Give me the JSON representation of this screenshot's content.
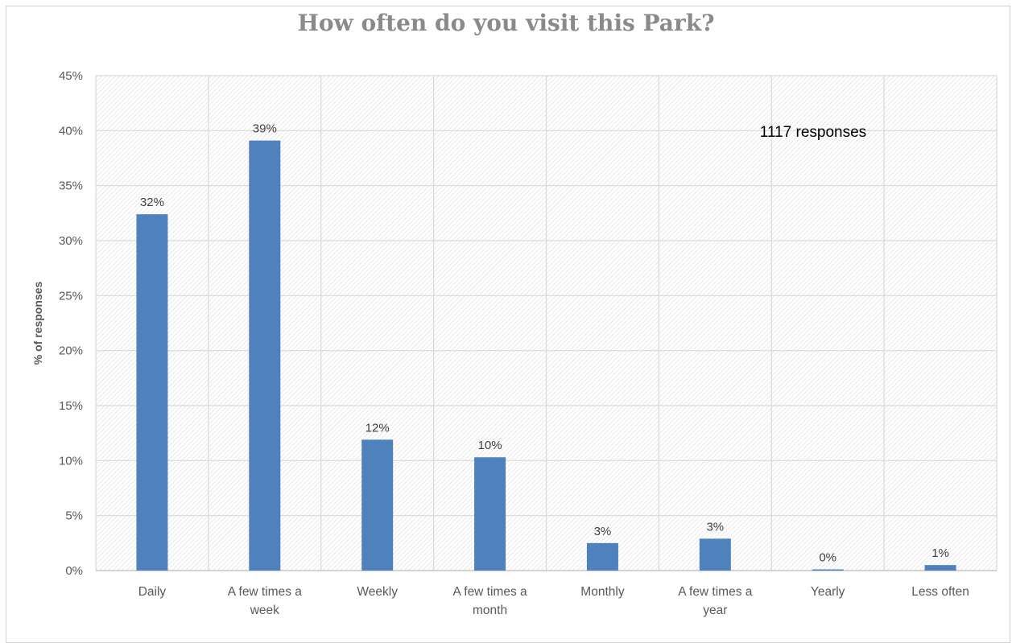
{
  "chart_data": {
    "type": "bar",
    "title": "How often do you visit this Park?",
    "ylabel": "% of responses",
    "xlabel": "",
    "annotation": "1117 responses",
    "categories": [
      [
        "Daily"
      ],
      [
        "A few times a",
        "week"
      ],
      [
        "Weekly"
      ],
      [
        "A few times a",
        "month"
      ],
      [
        "Monthly"
      ],
      [
        "A few times a",
        "year"
      ],
      [
        "Yearly"
      ],
      [
        "Less often"
      ]
    ],
    "values": [
      32.4,
      39.1,
      11.9,
      10.3,
      2.5,
      2.9,
      0.1,
      0.5
    ],
    "data_labels": [
      "32%",
      "39%",
      "12%",
      "10%",
      "3%",
      "3%",
      "0%",
      "1%"
    ],
    "ylim": [
      0,
      45
    ],
    "yticks": [
      0,
      5,
      10,
      15,
      20,
      25,
      30,
      35,
      40,
      45
    ],
    "ytick_labels": [
      "0%",
      "5%",
      "10%",
      "15%",
      "20%",
      "25%",
      "30%",
      "35%",
      "40%",
      "45%"
    ],
    "grid": true,
    "bar_color": "#4f81bd"
  }
}
